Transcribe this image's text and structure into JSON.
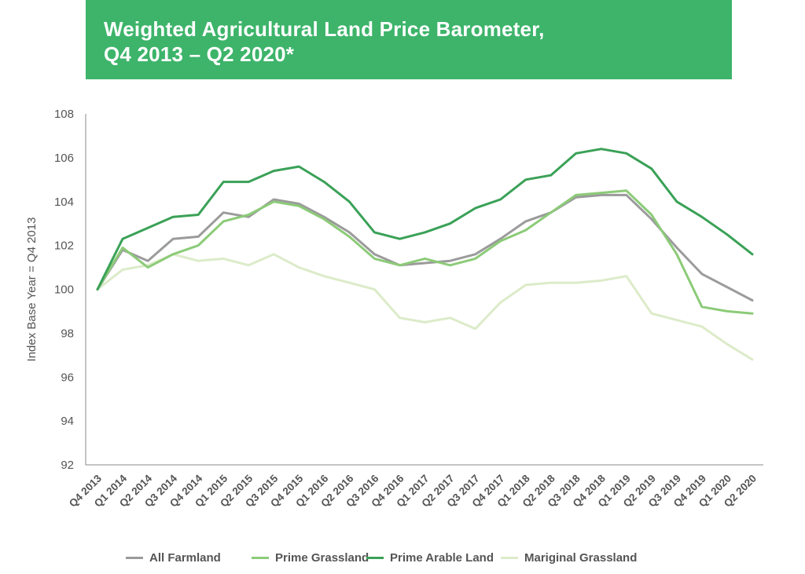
{
  "header": {
    "title_line1": "Weighted Agricultural Land Price Barometer,",
    "title_line2": "Q4 2013 – Q2 2020*",
    "color": "#3db46a"
  },
  "chart_data": {
    "type": "line",
    "title": "Weighted Agricultural Land Price Barometer, Q4 2013 – Q2 2020*",
    "xlabel": "",
    "ylabel": "Index Base Year = Q4 2013",
    "ylim": [
      92,
      108
    ],
    "yticks": [
      92,
      94,
      96,
      98,
      100,
      102,
      104,
      106,
      108
    ],
    "grid": false,
    "legend_position": "bottom",
    "categories": [
      "Q4 2013",
      "Q1 2014",
      "Q2 2014",
      "Q3 2014",
      "Q4 2014",
      "Q1 2015",
      "Q2 2015",
      "Q3 2015",
      "Q4 2015",
      "Q1 2016",
      "Q2 2016",
      "Q3 2016",
      "Q4 2016",
      "Q1 2017",
      "Q2 2017",
      "Q3 2017",
      "Q4 2017",
      "Q1 2018",
      "Q2 2018",
      "Q3 2018",
      "Q4 2018",
      "Q1 2019",
      "Q2 2019",
      "Q3 2019",
      "Q4 2019",
      "Q1 2020",
      "Q2 2020"
    ],
    "series": [
      {
        "name": "All Farmland",
        "color": "#9b9b9b",
        "values": [
          100.0,
          101.8,
          101.3,
          102.3,
          102.4,
          103.5,
          103.3,
          104.1,
          103.9,
          103.3,
          102.6,
          101.6,
          101.1,
          101.2,
          101.3,
          101.6,
          102.3,
          103.1,
          103.5,
          104.2,
          104.3,
          104.3,
          103.2,
          101.9,
          100.7,
          100.1,
          99.5
        ]
      },
      {
        "name": "Prime Grassland",
        "color": "#8ccb78",
        "values": [
          100.0,
          101.9,
          101.0,
          101.6,
          102.0,
          103.1,
          103.4,
          104.0,
          103.8,
          103.2,
          102.4,
          101.4,
          101.1,
          101.4,
          101.1,
          101.4,
          102.2,
          102.7,
          103.5,
          104.3,
          104.4,
          104.5,
          103.4,
          101.6,
          99.2,
          99.0,
          98.9
        ]
      },
      {
        "name": "Prime Arable Land",
        "color": "#3aa157",
        "values": [
          100.0,
          102.3,
          102.8,
          103.3,
          103.4,
          104.9,
          104.9,
          105.4,
          105.6,
          104.9,
          104.0,
          102.6,
          102.3,
          102.6,
          103.0,
          103.7,
          104.1,
          105.0,
          105.2,
          106.2,
          106.4,
          106.2,
          105.5,
          104.0,
          103.3,
          102.5,
          101.6
        ]
      },
      {
        "name": "Mariginal Grassland",
        "color": "#dcebc9",
        "values": [
          100.0,
          100.9,
          101.1,
          101.6,
          101.3,
          101.4,
          101.1,
          101.6,
          101.0,
          100.6,
          100.3,
          100.0,
          98.7,
          98.5,
          98.7,
          98.2,
          99.4,
          100.2,
          100.3,
          100.3,
          100.4,
          100.6,
          98.9,
          98.6,
          98.3,
          97.5,
          96.8
        ]
      }
    ]
  }
}
